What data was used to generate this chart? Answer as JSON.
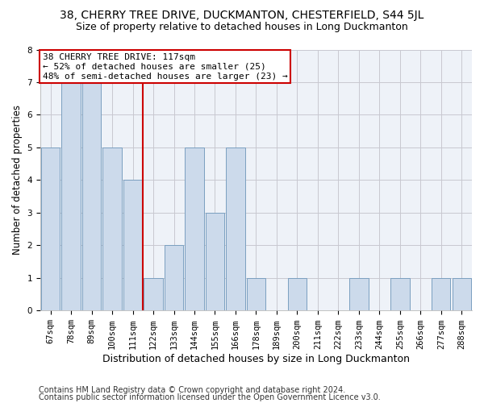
{
  "title1": "38, CHERRY TREE DRIVE, DUCKMANTON, CHESTERFIELD, S44 5JL",
  "title2": "Size of property relative to detached houses in Long Duckmanton",
  "xlabel": "Distribution of detached houses by size in Long Duckmanton",
  "ylabel": "Number of detached properties",
  "footer1": "Contains HM Land Registry data © Crown copyright and database right 2024.",
  "footer2": "Contains public sector information licensed under the Open Government Licence v3.0.",
  "annotation_line1": "38 CHERRY TREE DRIVE: 117sqm",
  "annotation_line2": "← 52% of detached houses are smaller (25)",
  "annotation_line3": "48% of semi-detached houses are larger (23) →",
  "categories": [
    "67sqm",
    "78sqm",
    "89sqm",
    "100sqm",
    "111sqm",
    "122sqm",
    "133sqm",
    "144sqm",
    "155sqm",
    "166sqm",
    "178sqm",
    "189sqm",
    "200sqm",
    "211sqm",
    "222sqm",
    "233sqm",
    "244sqm",
    "255sqm",
    "266sqm",
    "277sqm",
    "288sqm"
  ],
  "values": [
    5,
    7,
    7,
    5,
    4,
    1,
    2,
    5,
    3,
    5,
    1,
    0,
    1,
    0,
    0,
    1,
    0,
    1,
    0,
    1,
    1
  ],
  "bar_color": "#ccdaeb",
  "bar_edge_color": "#7a9fc0",
  "vline_x": 4.5,
  "vline_color": "#cc0000",
  "annotation_box_color": "#cc0000",
  "annotation_fill": "#ffffff",
  "ylim": [
    0,
    8
  ],
  "yticks": [
    0,
    1,
    2,
    3,
    4,
    5,
    6,
    7,
    8
  ],
  "grid_color": "#c8c8d0",
  "bg_color": "#eef2f8",
  "title1_fontsize": 10,
  "title2_fontsize": 9,
  "xlabel_fontsize": 9,
  "ylabel_fontsize": 8.5,
  "tick_fontsize": 7.5,
  "annotation_fontsize": 8,
  "footer_fontsize": 7
}
